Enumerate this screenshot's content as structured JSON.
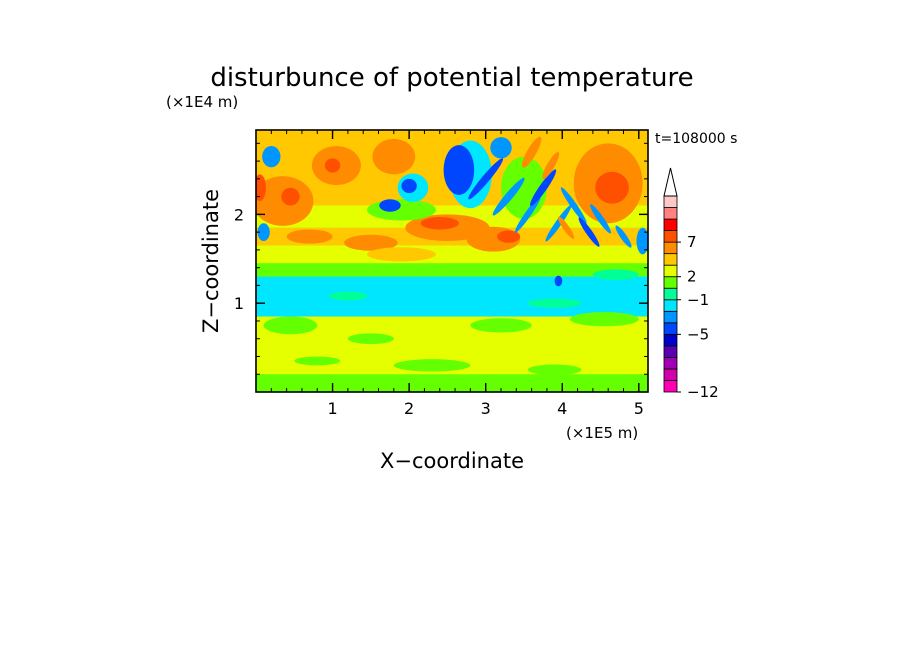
{
  "chart_data": {
    "type": "heatmap",
    "title": "disturbunce of potential temperature",
    "xlabel": "X−coordinate",
    "ylabel": "Z−coordinate",
    "x_unit": "(×1E5 m)",
    "y_unit": "(×1E4 m)",
    "time_label": "t=108000 s",
    "xlim": [
      0,
      5.12
    ],
    "ylim": [
      0,
      2.95
    ],
    "x_ticks": [
      {
        "value": 1,
        "label": "1"
      },
      {
        "value": 2,
        "label": "2"
      },
      {
        "value": 3,
        "label": "3"
      },
      {
        "value": 4,
        "label": "4"
      },
      {
        "value": 5,
        "label": "5"
      }
    ],
    "y_ticks": [
      {
        "value": 1,
        "label": "1"
      },
      {
        "value": 2,
        "label": "2"
      }
    ],
    "x_minor_step": 0.2,
    "y_minor_step": 0.2,
    "colorbar": {
      "colors": [
        "#ff00b4",
        "#d200aa",
        "#a000b4",
        "#5a00b4",
        "#0000c8",
        "#0046ff",
        "#0096ff",
        "#00e6ff",
        "#00ff96",
        "#64ff00",
        "#e6ff00",
        "#ffc800",
        "#ff8c00",
        "#ff5000",
        "#ff0000",
        "#ff8282",
        "#ffc8c8"
      ],
      "labels": [
        {
          "index": 0,
          "text": "−12"
        },
        {
          "index": 5,
          "text": "−5"
        },
        {
          "index": 8,
          "text": "−1"
        },
        {
          "index": 10,
          "text": "2"
        },
        {
          "index": 13,
          "text": "7"
        }
      ],
      "extend_max": true
    },
    "field": {
      "background_level": 9,
      "bands": [
        {
          "z": [
            0.0,
            0.2
          ],
          "level": 9
        },
        {
          "z": [
            0.2,
            0.85
          ],
          "level": 10
        },
        {
          "z": [
            0.85,
            1.3
          ],
          "level": 7
        },
        {
          "z": [
            1.3,
            1.45
          ],
          "level": 9
        },
        {
          "z": [
            1.45,
            1.65
          ],
          "level": 10
        },
        {
          "z": [
            1.65,
            1.85
          ],
          "level": 11
        },
        {
          "z": [
            1.85,
            2.1
          ],
          "level": 10
        },
        {
          "z": [
            2.1,
            2.95
          ],
          "level": 11
        }
      ],
      "blobs": [
        {
          "x": 0.35,
          "z": 2.15,
          "rx": 0.4,
          "rz": 0.28,
          "level": 12
        },
        {
          "x": 0.45,
          "z": 2.2,
          "rx": 0.12,
          "rz": 0.1,
          "level": 13
        },
        {
          "x": 0.05,
          "z": 2.3,
          "rx": 0.08,
          "rz": 0.15,
          "level": 13
        },
        {
          "x": 1.05,
          "z": 2.55,
          "rx": 0.32,
          "rz": 0.22,
          "level": 12
        },
        {
          "x": 1.0,
          "z": 2.55,
          "rx": 0.1,
          "rz": 0.08,
          "level": 13
        },
        {
          "x": 1.8,
          "z": 2.65,
          "rx": 0.28,
          "rz": 0.2,
          "level": 12
        },
        {
          "x": 4.6,
          "z": 2.35,
          "rx": 0.45,
          "rz": 0.45,
          "level": 12
        },
        {
          "x": 4.65,
          "z": 2.3,
          "rx": 0.22,
          "rz": 0.18,
          "level": 13
        },
        {
          "x": 2.5,
          "z": 1.85,
          "rx": 0.55,
          "rz": 0.15,
          "level": 12
        },
        {
          "x": 2.4,
          "z": 1.9,
          "rx": 0.25,
          "rz": 0.07,
          "level": 13
        },
        {
          "x": 3.1,
          "z": 1.72,
          "rx": 0.35,
          "rz": 0.14,
          "level": 12
        },
        {
          "x": 3.3,
          "z": 1.75,
          "rx": 0.15,
          "rz": 0.07,
          "level": 13
        },
        {
          "x": 1.5,
          "z": 1.68,
          "rx": 0.35,
          "rz": 0.09,
          "level": 12
        },
        {
          "x": 0.7,
          "z": 1.75,
          "rx": 0.3,
          "rz": 0.08,
          "level": 12
        },
        {
          "x": 1.9,
          "z": 1.55,
          "rx": 0.45,
          "rz": 0.08,
          "level": 11
        },
        {
          "x": 1.9,
          "z": 2.05,
          "rx": 0.45,
          "rz": 0.12,
          "level": 9
        },
        {
          "x": 3.5,
          "z": 2.3,
          "rx": 0.3,
          "rz": 0.35,
          "level": 9
        },
        {
          "x": 2.8,
          "z": 2.45,
          "rx": 0.28,
          "rz": 0.38,
          "level": 7
        },
        {
          "x": 2.65,
          "z": 2.5,
          "rx": 0.2,
          "rz": 0.28,
          "level": 5
        },
        {
          "x": 2.05,
          "z": 2.3,
          "rx": 0.2,
          "rz": 0.16,
          "level": 7
        },
        {
          "x": 2.0,
          "z": 2.32,
          "rx": 0.1,
          "rz": 0.08,
          "level": 5
        },
        {
          "x": 1.75,
          "z": 2.1,
          "rx": 0.14,
          "rz": 0.07,
          "level": 5
        },
        {
          "x": 3.2,
          "z": 2.75,
          "rx": 0.14,
          "rz": 0.12,
          "level": 6
        },
        {
          "x": 0.2,
          "z": 2.65,
          "rx": 0.12,
          "rz": 0.12,
          "level": 6
        },
        {
          "x": 0.1,
          "z": 1.8,
          "rx": 0.08,
          "rz": 0.1,
          "level": 6
        },
        {
          "x": 5.05,
          "z": 1.7,
          "rx": 0.08,
          "rz": 0.15,
          "level": 6
        },
        {
          "x": 3.95,
          "z": 1.25,
          "rx": 0.05,
          "rz": 0.06,
          "level": 5
        },
        {
          "x": 0.45,
          "z": 0.75,
          "rx": 0.35,
          "rz": 0.1,
          "level": 9
        },
        {
          "x": 1.5,
          "z": 0.6,
          "rx": 0.3,
          "rz": 0.06,
          "level": 9
        },
        {
          "x": 3.2,
          "z": 0.75,
          "rx": 0.4,
          "rz": 0.08,
          "level": 9
        },
        {
          "x": 4.55,
          "z": 0.82,
          "rx": 0.45,
          "rz": 0.08,
          "level": 9
        },
        {
          "x": 2.3,
          "z": 0.3,
          "rx": 0.5,
          "rz": 0.07,
          "level": 9
        },
        {
          "x": 3.9,
          "z": 0.25,
          "rx": 0.35,
          "rz": 0.06,
          "level": 9
        },
        {
          "x": 0.8,
          "z": 0.35,
          "rx": 0.3,
          "rz": 0.05,
          "level": 9
        },
        {
          "x": 1.2,
          "z": 1.08,
          "rx": 0.25,
          "rz": 0.05,
          "level": 8
        },
        {
          "x": 3.9,
          "z": 1.0,
          "rx": 0.35,
          "rz": 0.05,
          "level": 8
        },
        {
          "x": 4.7,
          "z": 1.32,
          "rx": 0.3,
          "rz": 0.06,
          "level": 8
        }
      ],
      "stripes": [
        {
          "x": 3.0,
          "z": 2.4,
          "len": 0.6,
          "w": 0.05,
          "angle": -50,
          "level": 5
        },
        {
          "x": 3.3,
          "z": 2.2,
          "len": 0.55,
          "w": 0.05,
          "angle": -50,
          "level": 6
        },
        {
          "x": 3.55,
          "z": 2.0,
          "len": 0.5,
          "w": 0.04,
          "angle": -55,
          "level": 6
        },
        {
          "x": 3.75,
          "z": 2.3,
          "len": 0.5,
          "w": 0.05,
          "angle": -55,
          "level": 5
        },
        {
          "x": 3.95,
          "z": 1.9,
          "len": 0.5,
          "w": 0.04,
          "angle": -55,
          "level": 6
        },
        {
          "x": 4.15,
          "z": 2.1,
          "len": 0.5,
          "w": 0.04,
          "angle": 55,
          "level": 6
        },
        {
          "x": 4.35,
          "z": 1.8,
          "len": 0.4,
          "w": 0.04,
          "angle": 55,
          "level": 5
        },
        {
          "x": 4.5,
          "z": 1.95,
          "len": 0.4,
          "w": 0.04,
          "angle": 55,
          "level": 6
        },
        {
          "x": 4.8,
          "z": 1.75,
          "len": 0.3,
          "w": 0.04,
          "angle": 55,
          "level": 6
        },
        {
          "x": 3.6,
          "z": 2.7,
          "len": 0.4,
          "w": 0.06,
          "angle": -60,
          "level": 12
        },
        {
          "x": 3.85,
          "z": 2.55,
          "len": 0.35,
          "w": 0.05,
          "angle": -60,
          "level": 12
        },
        {
          "x": 4.05,
          "z": 1.85,
          "len": 0.3,
          "w": 0.04,
          "angle": 55,
          "level": 12
        }
      ]
    }
  }
}
